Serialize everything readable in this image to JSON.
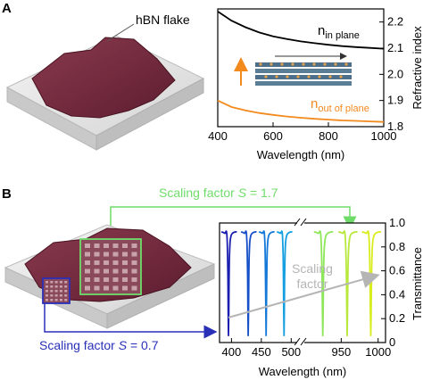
{
  "panel_a": {
    "letter": "A",
    "flake_label": "hBN flake",
    "chart_data": {
      "type": "line",
      "xlabel": "Wavelength (nm)",
      "ylabel": "Refractive index",
      "xlim": [
        400,
        1000
      ],
      "ylim": [
        1.8,
        2.25
      ],
      "x_ticks": [
        "400",
        "600",
        "800",
        "1000"
      ],
      "y_ticks": [
        "1.8",
        "1.9",
        "2.0",
        "2.1",
        "2.2"
      ],
      "series": [
        {
          "name": "n in plane",
          "color": "#000000",
          "x": [
            400,
            450,
            500,
            550,
            600,
            650,
            700,
            750,
            800,
            850,
            900,
            950,
            1000
          ],
          "y": [
            2.24,
            2.205,
            2.18,
            2.16,
            2.145,
            2.135,
            2.126,
            2.119,
            2.113,
            2.108,
            2.104,
            2.101,
            2.098
          ]
        },
        {
          "name": "n out of plane",
          "color": "#f28a1e",
          "x": [
            400,
            450,
            500,
            550,
            600,
            650,
            700,
            750,
            800,
            850,
            900,
            950,
            1000
          ],
          "y": [
            1.9,
            1.875,
            1.862,
            1.852,
            1.845,
            1.839,
            1.834,
            1.83,
            1.827,
            1.824,
            1.822,
            1.82,
            1.818
          ]
        }
      ],
      "labels": {
        "n_in_main": "n",
        "n_in_sub": "in plane",
        "n_out_main": "n",
        "n_out_sub": "out of plane"
      }
    }
  },
  "panel_b": {
    "letter": "B",
    "scaling_top": {
      "prefix": "Scaling factor ",
      "symbol": "S",
      "value": " = 1.7"
    },
    "scaling_bottom": {
      "prefix": "Scaling factor ",
      "symbol": "S",
      "value": " = 0.7"
    },
    "colors": {
      "top_box": "#6fdc6a",
      "bottom_box": "#2a2fb8",
      "arrow_gray": "#b5b5b5"
    },
    "chart_data": {
      "type": "line",
      "xlabel": "Wavelength (nm)",
      "ylabel": "Transmittance",
      "ylim": [
        0,
        1.0
      ],
      "x_ticks_left": [
        "400",
        "450",
        "500"
      ],
      "x_ticks_right": [
        "950",
        "1000"
      ],
      "y_ticks": [
        "0",
        "0.2",
        "0.4",
        "0.6",
        "0.8",
        "1.0"
      ],
      "annotation": [
        "Scaling",
        "factor"
      ],
      "resonances": [
        {
          "wavelength": 395,
          "color": "#1a1fb0"
        },
        {
          "wavelength": 428,
          "color": "#1650c8"
        },
        {
          "wavelength": 458,
          "color": "#1478d8"
        },
        {
          "wavelength": 488,
          "color": "#159ee0"
        },
        {
          "wavelength": 925,
          "color": "#8ee65a"
        },
        {
          "wavelength": 958,
          "color": "#b8e83c"
        },
        {
          "wavelength": 990,
          "color": "#d9ec1e"
        }
      ]
    }
  }
}
